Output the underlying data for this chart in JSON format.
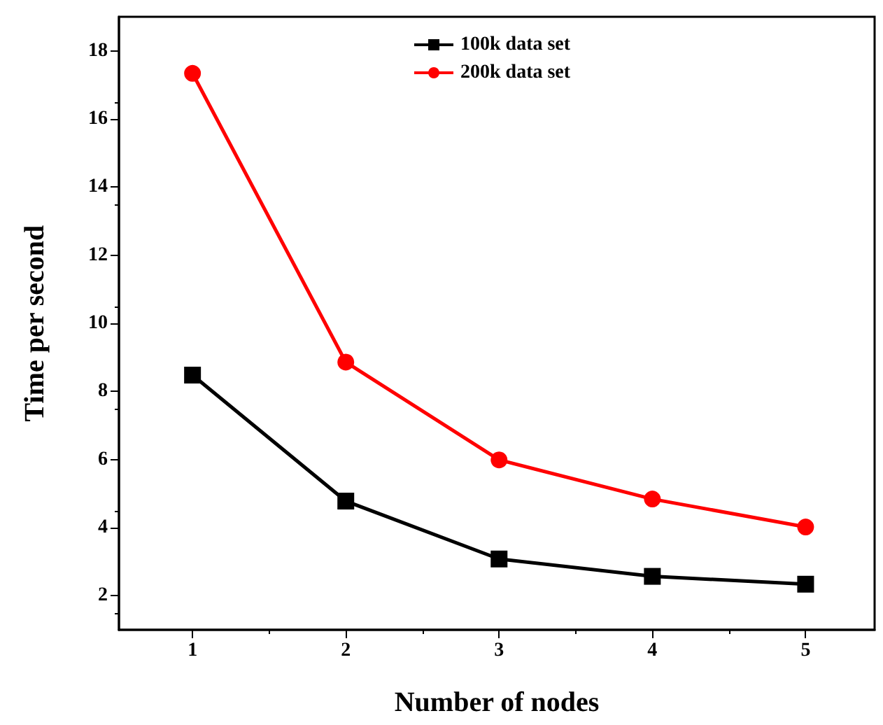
{
  "chart_data": {
    "type": "line",
    "xlabel": "Number of nodes",
    "ylabel": "Time per second",
    "x": [
      1,
      2,
      3,
      4,
      5
    ],
    "series": [
      {
        "name": "100k data set",
        "color": "#000000",
        "marker": "square",
        "values": [
          8.48,
          4.78,
          3.08,
          2.57,
          2.34
        ]
      },
      {
        "name": "200k data set",
        "color": "#ff0000",
        "marker": "circle",
        "values": [
          17.34,
          8.86,
          5.99,
          4.84,
          4.02
        ]
      }
    ],
    "xlim": [
      0.52,
      5.45
    ],
    "xticks": [
      1,
      2,
      3,
      4,
      5
    ],
    "ylim": [
      1,
      19
    ],
    "yticks": [
      2,
      4,
      6,
      8,
      10,
      12,
      14,
      16,
      18
    ],
    "grid": false,
    "legend": "top"
  }
}
